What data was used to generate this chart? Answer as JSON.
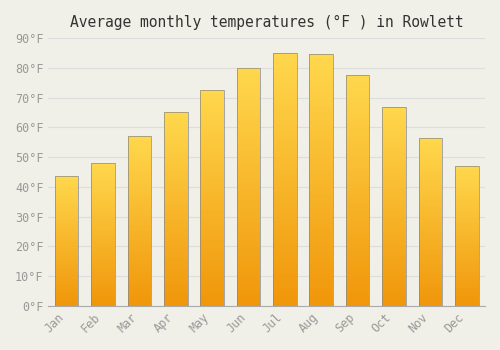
{
  "title": "Average monthly temperatures (°F ) in Rowlett",
  "months": [
    "Jan",
    "Feb",
    "Mar",
    "Apr",
    "May",
    "Jun",
    "Jul",
    "Aug",
    "Sep",
    "Oct",
    "Nov",
    "Dec"
  ],
  "values": [
    43.5,
    48.0,
    57.0,
    65.0,
    72.5,
    80.0,
    85.0,
    84.5,
    77.5,
    67.0,
    56.5,
    47.0
  ],
  "bar_color_bottom": "#F0960A",
  "bar_color_top": "#FFD84D",
  "bar_edge_color": "#888888",
  "background_color": "#F0F0E8",
  "grid_color": "#DDDDDD",
  "ylim": [
    0,
    90
  ],
  "yticks": [
    0,
    10,
    20,
    30,
    40,
    50,
    60,
    70,
    80,
    90
  ],
  "ytick_labels": [
    "0°F",
    "10°F",
    "20°F",
    "30°F",
    "40°F",
    "50°F",
    "60°F",
    "70°F",
    "80°F",
    "90°F"
  ],
  "title_fontsize": 10.5,
  "tick_fontsize": 8.5,
  "tick_color": "#999999"
}
